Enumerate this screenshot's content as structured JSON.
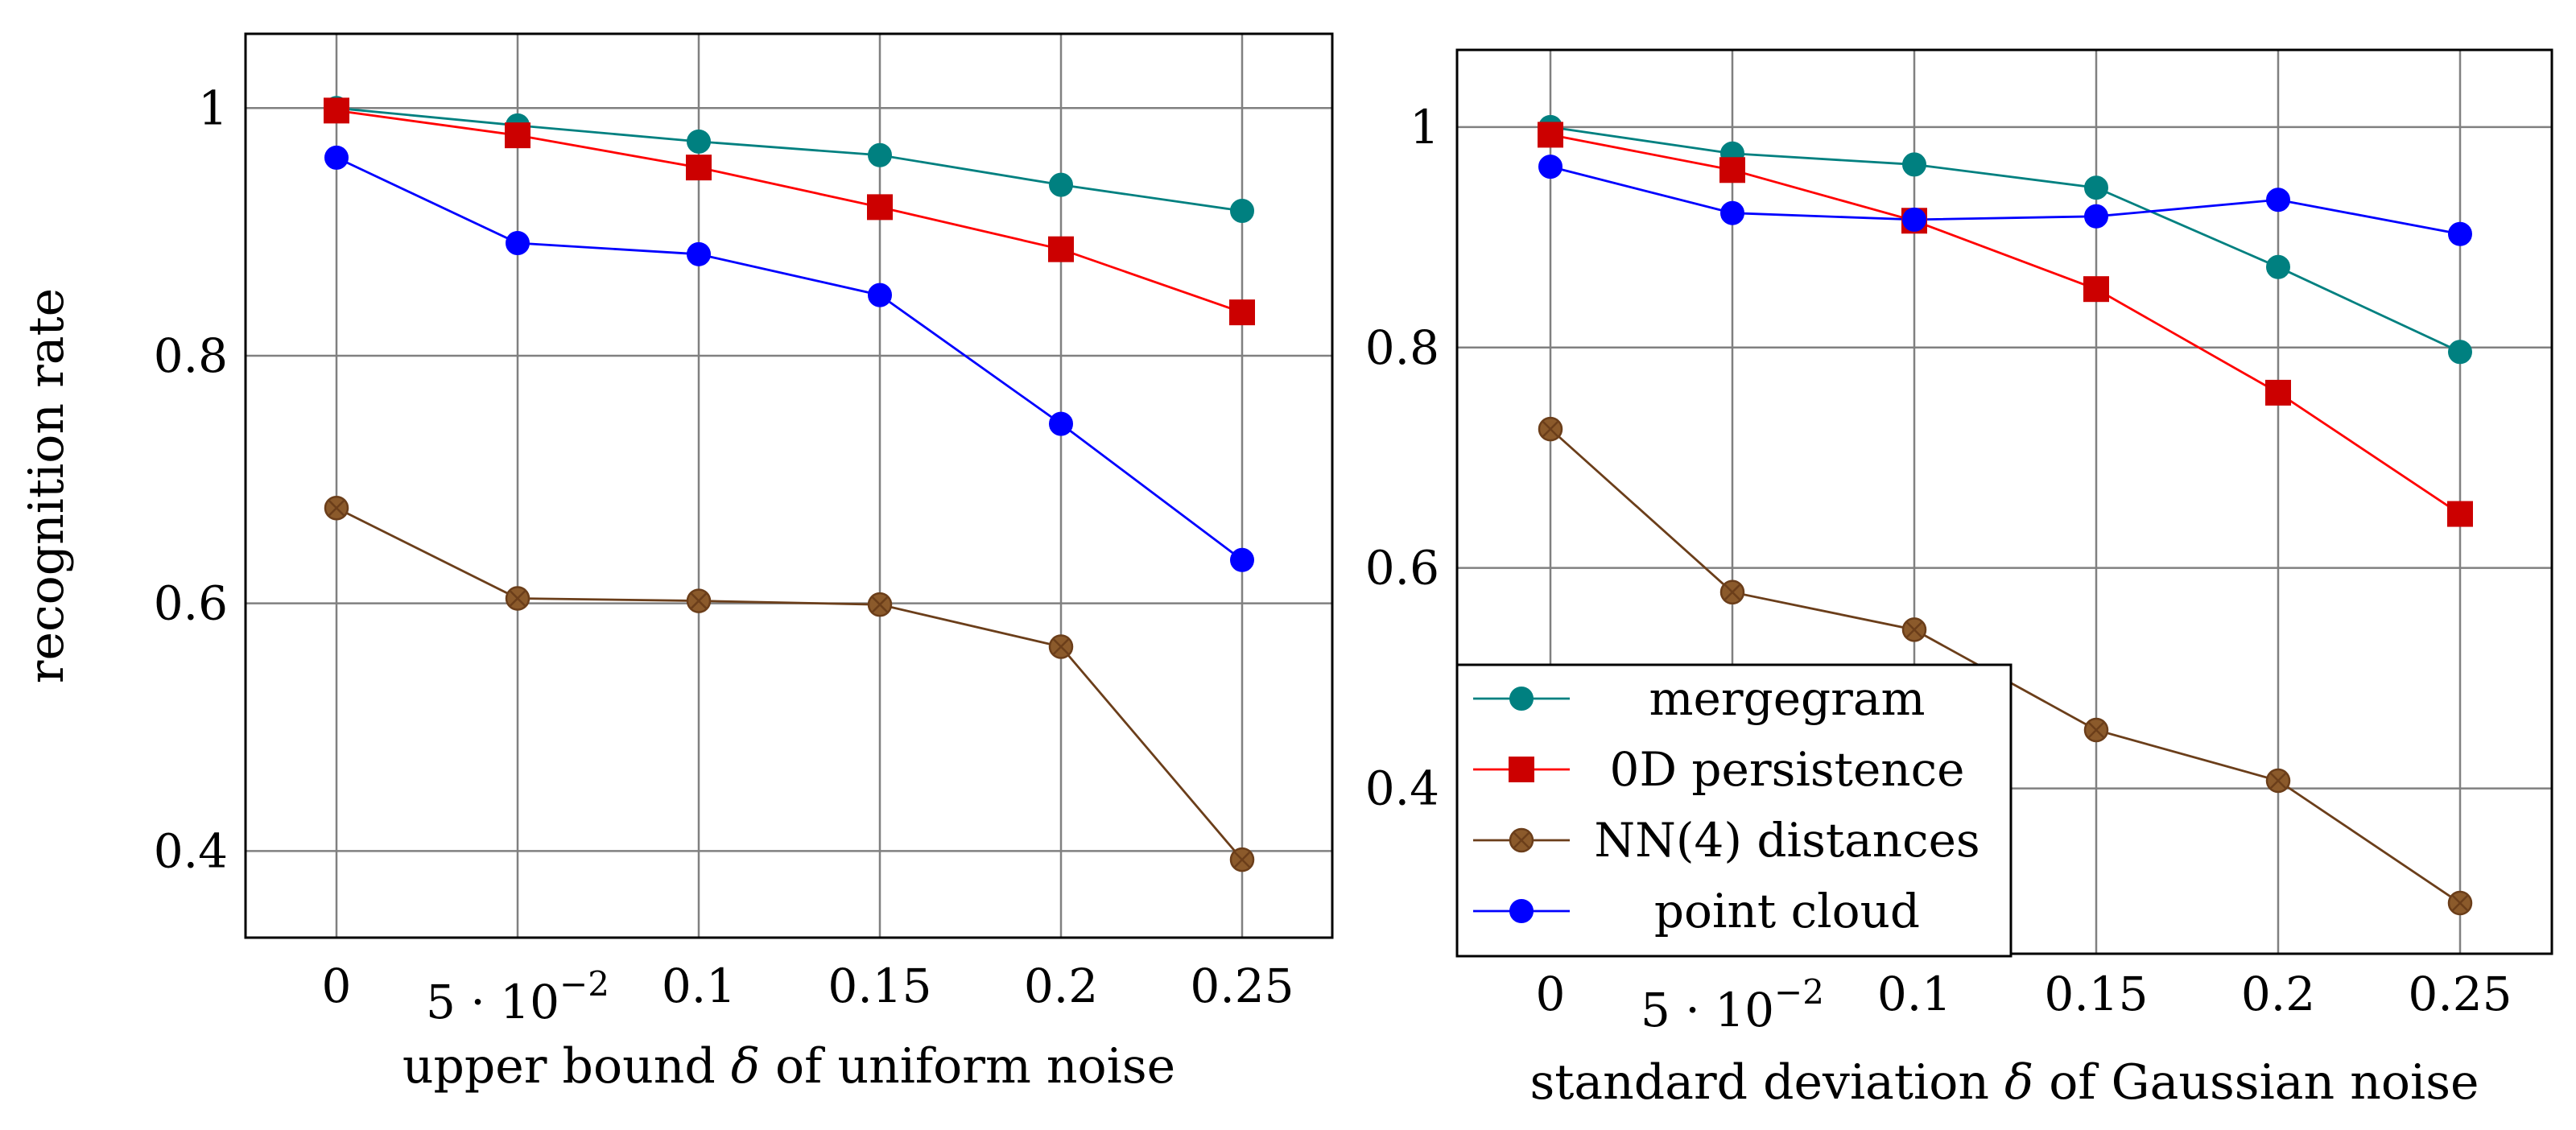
{
  "colors": {
    "mergegram": "#008080",
    "persistence": "#ff0000",
    "persistence_marker": "#cc0000",
    "nn": "#6b3e1a",
    "nn_marker": "#8b5a2b",
    "pointcloud": "#0000ff",
    "grid": "#808080"
  },
  "legend": {
    "placement": "lower-left of right chart",
    "entries": [
      "mergegram",
      "0D persistence",
      "NN(4) distances",
      "point cloud"
    ]
  },
  "chart_data": [
    {
      "type": "line",
      "x": [
        0,
        0.05,
        0.1,
        0.15,
        0.2,
        0.25
      ],
      "xtick_labels": [
        "0",
        "5 · 10",
        "0.1",
        "0.15",
        "0.2",
        "0.25"
      ],
      "xtick_exponent": "−2",
      "xlabel_parts": [
        "upper bound ",
        "δ",
        " of uniform noise"
      ],
      "ylabel": "recognition rate",
      "ylim": [
        0.33,
        1.06
      ],
      "yticks": [
        0.4,
        0.6,
        0.8,
        1
      ],
      "ytick_labels": [
        "0.4",
        "0.6",
        "0.8",
        "1"
      ],
      "grid": true,
      "series": [
        {
          "name": "mergegram",
          "key": "mergegram",
          "marker": "circle",
          "values": [
            1.0,
            0.986,
            0.973,
            0.962,
            0.938,
            0.917
          ]
        },
        {
          "name": "0D persistence",
          "key": "persistence",
          "marker": "square",
          "values": [
            0.998,
            0.978,
            0.952,
            0.92,
            0.886,
            0.835
          ]
        },
        {
          "name": "NN(4) distances",
          "key": "nn",
          "marker": "xcircle",
          "values": [
            0.677,
            0.604,
            0.602,
            0.599,
            0.565,
            0.393
          ]
        },
        {
          "name": "point cloud",
          "key": "pointcloud",
          "marker": "circle",
          "values": [
            0.96,
            0.891,
            0.882,
            0.849,
            0.745,
            0.635
          ]
        }
      ]
    },
    {
      "type": "line",
      "x": [
        0,
        0.05,
        0.1,
        0.15,
        0.2,
        0.25
      ],
      "xtick_labels": [
        "0",
        "5 · 10",
        "0.1",
        "0.15",
        "0.2",
        "0.25"
      ],
      "xtick_exponent": "−2",
      "xlabel_parts": [
        "standard deviation ",
        "δ",
        " of Gaussian noise"
      ],
      "ylabel": "",
      "ylim": [
        0.25,
        1.07
      ],
      "yticks": [
        0.4,
        0.6,
        0.8,
        1
      ],
      "ytick_labels": [
        "0.4",
        "0.6",
        "0.8",
        "1"
      ],
      "grid": true,
      "series": [
        {
          "name": "mergegram",
          "key": "mergegram",
          "marker": "circle",
          "values": [
            1.0,
            0.976,
            0.966,
            0.945,
            0.873,
            0.796
          ]
        },
        {
          "name": "0D persistence",
          "key": "persistence",
          "marker": "square",
          "values": [
            0.993,
            0.961,
            0.915,
            0.853,
            0.759,
            0.649
          ]
        },
        {
          "name": "NN(4) distances",
          "key": "nn",
          "marker": "xcircle",
          "values": [
            0.726,
            0.578,
            0.544,
            0.453,
            0.407,
            0.296
          ]
        },
        {
          "name": "point cloud",
          "key": "pointcloud",
          "marker": "circle",
          "values": [
            0.964,
            0.922,
            0.916,
            0.919,
            0.934,
            0.903
          ]
        }
      ]
    }
  ]
}
